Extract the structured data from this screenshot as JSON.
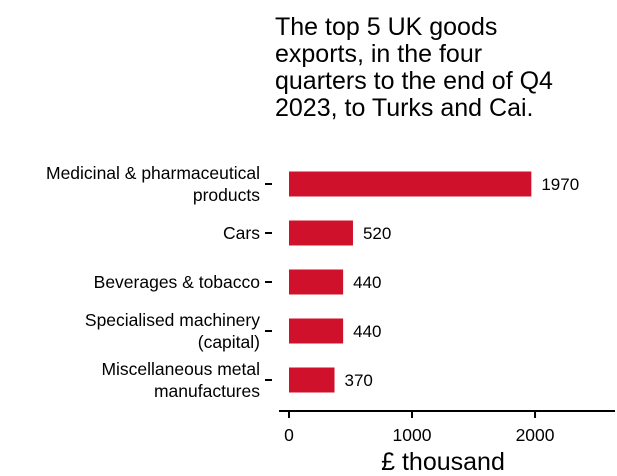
{
  "chart_data": {
    "type": "bar",
    "orientation": "horizontal",
    "title_lines": [
      "The top 5 UK goods",
      "exports, in the four",
      "quarters to the end of Q4",
      "2023, to Turks and Cai."
    ],
    "categories": [
      [
        "Medicinal & pharmaceutical",
        "products"
      ],
      [
        "Cars"
      ],
      [
        "Beverages & tobacco"
      ],
      [
        "Specialised machinery",
        "(capital)"
      ],
      [
        "Miscellaneous metal",
        "manufactures"
      ]
    ],
    "values": [
      1970,
      520,
      440,
      440,
      370
    ],
    "data_labels": [
      "1970",
      "520",
      "440",
      "440",
      "370"
    ],
    "xlabel": "£ thousand",
    "xlim": [
      0,
      2650
    ],
    "xticks": [
      0,
      1000,
      2000
    ],
    "xtick_labels": [
      "0",
      "1000",
      "2000"
    ],
    "bar_color": "#d0112b",
    "grid": false,
    "legend": "none"
  }
}
